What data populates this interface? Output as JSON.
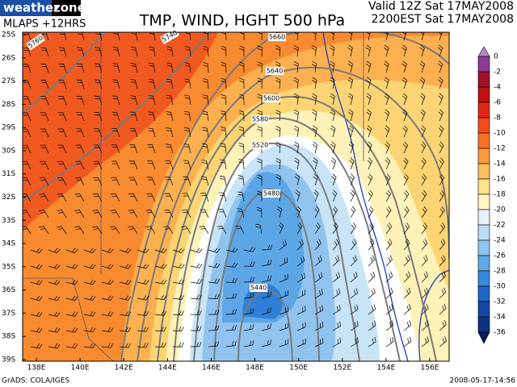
{
  "logo": {
    "part1": "weather",
    "part2": "zone"
  },
  "model": "MLAPS +12HRS",
  "title": "TMP, WIND, HGHT 500 hPa",
  "valid": "Valid 12Z Sat 17MAY2008",
  "local_time": "2200EST Sat 17MAY2008",
  "map": {
    "lat_labels": [
      "25S",
      "26S",
      "27S",
      "28S",
      "29S",
      "30S",
      "31S",
      "32S",
      "33S",
      "34S",
      "35S",
      "36S",
      "37S",
      "38S",
      "39S"
    ],
    "lon_labels": [
      "138E",
      "140E",
      "142E",
      "144E",
      "146E",
      "148E",
      "150E",
      "152E",
      "154E",
      "156E"
    ],
    "contour_labels": [
      "5760",
      "5740",
      "5660",
      "5640",
      "5600",
      "5580",
      "5520",
      "5480",
      "5440"
    ]
  },
  "colorbar": {
    "labels": [
      0,
      -2,
      -4,
      -6,
      -8,
      -10,
      -12,
      -14,
      -16,
      -18,
      -20,
      -22,
      -24,
      -26,
      -28,
      -30,
      -32,
      -34,
      -36
    ],
    "colors": [
      "#b08ccb",
      "#8c3c96",
      "#a0102a",
      "#c01010",
      "#e02818",
      "#f04c1c",
      "#f87028",
      "#fc9a40",
      "#fcc05c",
      "#fde28c",
      "#fef6c4",
      "#e6f2fa",
      "#bcdcf4",
      "#90c4ee",
      "#62a8e6",
      "#3a88dc",
      "#2068c8",
      "#1448a4",
      "#0c3280",
      "#081e5a"
    ]
  },
  "footer": {
    "credit": "GrADS: COLA/IGES",
    "timestamp": "2008-05-17-14:56"
  }
}
